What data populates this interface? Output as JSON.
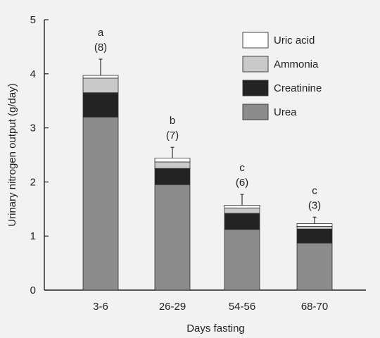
{
  "chart_data": {
    "type": "bar",
    "stacked": true,
    "categories": [
      "3-6",
      "26-29",
      "54-56",
      "68-70"
    ],
    "series": [
      {
        "name": "Urea",
        "color": "#8c8c8c",
        "values": [
          3.2,
          1.95,
          1.12,
          0.87
        ]
      },
      {
        "name": "Creatinine",
        "color": "#232323",
        "values": [
          0.45,
          0.3,
          0.3,
          0.26
        ]
      },
      {
        "name": "Ammonia",
        "color": "#c9c9c9",
        "values": [
          0.27,
          0.12,
          0.1,
          0.05
        ]
      },
      {
        "name": "Uric acid",
        "color": "#ffffff",
        "values": [
          0.05,
          0.07,
          0.05,
          0.05
        ]
      }
    ],
    "error_bars": [
      0.3,
      0.2,
      0.2,
      0.12
    ],
    "annotations": [
      {
        "letter": "a",
        "n": "(8)"
      },
      {
        "letter": "b",
        "n": "(7)"
      },
      {
        "letter": "c",
        "n": "(6)"
      },
      {
        "letter": "c",
        "n": "(3)"
      }
    ],
    "xlabel": "Days fasting",
    "ylabel": "Urinary nitrogen output (g/day)",
    "ylim": [
      0,
      5
    ],
    "yticks": [
      "0",
      "1",
      "2",
      "3",
      "4",
      "5"
    ],
    "legend_order": [
      "Uric acid",
      "Ammonia",
      "Creatinine",
      "Urea"
    ],
    "legend_position": "top-right",
    "grid": false
  }
}
